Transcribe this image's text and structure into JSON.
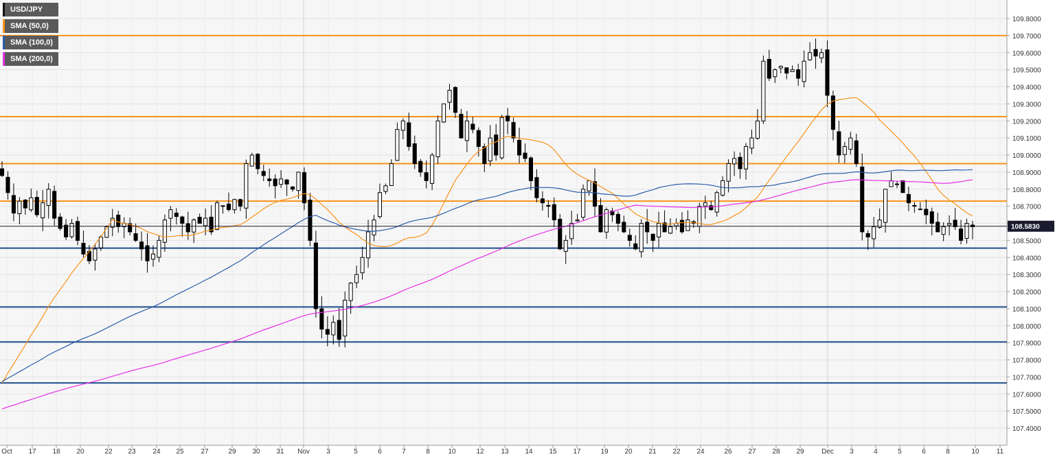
{
  "chart_data": {
    "type": "candlestick",
    "symbol": "USD/JPY",
    "y_range": [
      107.3,
      109.9
    ],
    "y_ticks": [
      "109.8000",
      "109.7000",
      "109.6000",
      "109.5000",
      "109.4000",
      "109.3000",
      "109.2000",
      "109.1000",
      "109.0000",
      "108.9000",
      "108.8000",
      "108.7000",
      "108.6000",
      "108.5000",
      "108.4000",
      "108.3000",
      "108.2000",
      "108.1000",
      "108.0000",
      "107.9000",
      "107.8000",
      "107.7000",
      "107.6000",
      "107.5000",
      "107.4000"
    ],
    "x_labels": [
      "Oct",
      "17",
      "18",
      "20",
      "22",
      "23",
      "24",
      "25",
      "27",
      "29",
      "30",
      "31",
      "Nov",
      "3",
      "5",
      "6",
      "7",
      "8",
      "10",
      "12",
      "13",
      "14",
      "15",
      "17",
      "19",
      "20",
      "21",
      "22",
      "24",
      "26",
      "27",
      "28",
      "29",
      "Dec",
      "3",
      "4",
      "5",
      "6",
      "8",
      "10",
      "11"
    ],
    "current_price": "108.5830",
    "resistance_levels": [
      109.7,
      109.225,
      108.95,
      108.73
    ],
    "support_levels": [
      108.455,
      108.11,
      107.905,
      107.665
    ],
    "legend": [
      {
        "label": "USD/JPY",
        "color": "#000000"
      },
      {
        "label": "SMA (50,0)",
        "color": "#f7931a"
      },
      {
        "label": "SMA (100,0)",
        "color": "#2a5caa"
      },
      {
        "label": "SMA (200,0)",
        "color": "#e62ee6"
      }
    ],
    "colors": {
      "up": "#ffffff",
      "down": "#000000",
      "resistance": "#f7931a",
      "support": "#1f4e8c",
      "sma50": "#f7931a",
      "sma100": "#2a5caa",
      "sma200": "#e62ee6",
      "price_tag_bg": "#1a1a2e"
    },
    "closes": [
      108.88,
      108.78,
      108.66,
      108.73,
      108.69,
      108.75,
      108.65,
      108.72,
      108.8,
      108.63,
      108.57,
      108.52,
      108.6,
      108.5,
      108.42,
      108.38,
      108.45,
      108.52,
      108.58,
      108.63,
      108.58,
      108.6,
      108.55,
      108.5,
      108.45,
      108.38,
      108.42,
      108.5,
      108.62,
      108.68,
      108.64,
      108.6,
      108.55,
      108.62,
      108.6,
      108.63,
      108.55,
      108.72,
      108.7,
      108.68,
      108.74,
      108.7,
      108.95,
      109.0,
      108.92,
      108.88,
      108.85,
      108.82,
      108.86,
      108.83,
      108.8,
      108.9,
      108.72,
      108.5,
      108.1,
      107.98,
      107.95,
      108.02,
      107.92,
      108.15,
      108.25,
      108.3,
      108.4,
      108.55,
      108.62,
      108.78,
      108.82,
      108.95,
      109.15,
      109.2,
      109.05,
      108.95,
      108.9,
      108.85,
      109.0,
      109.2,
      109.3,
      109.38,
      109.25,
      109.1,
      109.2,
      109.15,
      109.05,
      108.95,
      109.1,
      109.0,
      109.22,
      109.2,
      109.1,
      109.0,
      108.98,
      108.85,
      108.75,
      108.72,
      108.7,
      108.62,
      108.45,
      108.5,
      108.6,
      108.62,
      108.8,
      108.85,
      108.7,
      108.55,
      108.68,
      108.65,
      108.6,
      108.55,
      108.5,
      108.45,
      108.6,
      108.55,
      108.5,
      108.6,
      108.55,
      108.58,
      108.6,
      108.55,
      108.62,
      108.6,
      108.7,
      108.72,
      108.68,
      108.78,
      108.85,
      108.95,
      108.98,
      108.92,
      109.05,
      109.1,
      109.2,
      109.55,
      109.45,
      109.5,
      109.52,
      109.48,
      109.5,
      109.45,
      109.55,
      109.6,
      109.58,
      109.6,
      109.35,
      109.15,
      109.0,
      109.05,
      109.1,
      108.95,
      108.55,
      108.52,
      108.58,
      108.62,
      108.8,
      108.85,
      108.83,
      108.78,
      108.72,
      108.7,
      108.68,
      108.65,
      108.6,
      108.55,
      108.58,
      108.6,
      108.58,
      108.5,
      108.6,
      108.58
    ]
  }
}
